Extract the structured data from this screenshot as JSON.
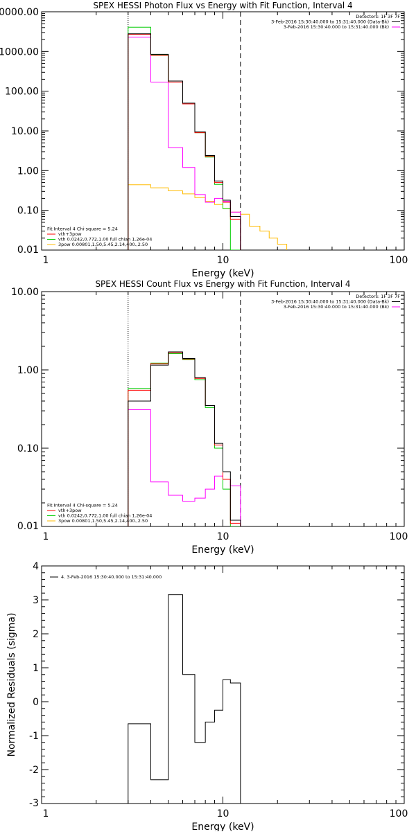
{
  "chart_data": [
    {
      "type": "line",
      "title": "SPEX HESSI Photon Flux vs Energy with Fit Function, Interval 4",
      "xlabel": "Energy (keV)",
      "ylabel": "",
      "xscale": "log",
      "yscale": "log",
      "xlim": [
        1,
        100
      ],
      "ylim": [
        0.01,
        10000
      ],
      "xticks": [
        {
          "v": 1,
          "label": "1"
        },
        {
          "v": 10,
          "label": "10"
        },
        {
          "v": 100,
          "label": "100"
        }
      ],
      "yticks": [
        {
          "v": 10000,
          "label": "10000.00"
        },
        {
          "v": 1000,
          "label": "1000.00"
        },
        {
          "v": 100,
          "label": "100.00"
        },
        {
          "v": 10,
          "label": "10.00"
        },
        {
          "v": 1,
          "label": "1.00"
        },
        {
          "v": 0.1,
          "label": "0.10"
        },
        {
          "v": 0.01,
          "label": "0.01"
        }
      ],
      "vlines": [
        {
          "x": 3.0,
          "style": "dotted"
        },
        {
          "x": 12.5,
          "style": "dashed"
        }
      ],
      "legend_tr": [
        {
          "text": "Detectors: 1F 3F 7F",
          "color": "#000000",
          "line": false
        },
        {
          "text": "3-Feb-2016 15:30:40.000 to 15:31:40.000 (Data-Bk)",
          "color": "#000000",
          "line": true
        },
        {
          "text": "3-Feb-2016 15:30:40.000 to 15:31:40.000 (Bk)",
          "color": "#ff00ff",
          "line": true
        }
      ],
      "legend_bl": [
        {
          "text": "Fit Interval 4   Chi-square = 5.24",
          "color": "#000000",
          "line": false
        },
        {
          "text": "vth+3pow",
          "color": "#ff0000",
          "line": true
        },
        {
          "text": "vth 0.0242,0.772,1.00   full chian 1.26e-04",
          "color": "#00cc00",
          "line": true
        },
        {
          "text": "3pow 0.00801,1.50,5.45,2.14,400.,2.50",
          "color": "#ffbb00",
          "line": true
        }
      ],
      "edges": [
        3.0,
        4.0,
        5.0,
        6.0,
        7.0,
        8.0,
        9.0,
        10.0,
        11.0,
        12.5
      ],
      "series": [
        {
          "name": "Data-Bk",
          "color": "#000000",
          "values": [
            2800,
            850,
            180,
            50,
            9.5,
            2.4,
            0.55,
            0.18,
            0.07
          ]
        },
        {
          "name": "vth+3pow",
          "color": "#ff0000",
          "values": [
            2700,
            800,
            170,
            48,
            9,
            2.3,
            0.5,
            0.16,
            0.06
          ]
        },
        {
          "name": "vth",
          "color": "#00cc00",
          "values": [
            4100,
            830,
            170,
            48,
            9,
            2.2,
            0.45,
            0.11,
            0.01
          ]
        },
        {
          "name": "Bk",
          "color": "#ff00ff",
          "values": [
            2300,
            170,
            3.8,
            1.2,
            0.25,
            0.16,
            0.2,
            0.17,
            0.09
          ]
        },
        {
          "name": "3pow",
          "color": "#ffbb00",
          "edges": [
            3.0,
            4.0,
            5.0,
            6.0,
            7.0,
            8.0,
            9.0,
            10.0,
            11.0,
            12.5,
            14.0,
            16.0,
            18.0,
            20.0,
            22.5
          ],
          "values": [
            0.44,
            0.37,
            0.31,
            0.26,
            0.21,
            0.17,
            0.14,
            0.11,
            0.09,
            0.08,
            0.04,
            0.03,
            0.02,
            0.014
          ]
        }
      ]
    },
    {
      "type": "line",
      "title": "SPEX HESSI Count Flux vs Energy with Fit Function, Interval 4",
      "xlabel": "Energy (keV)",
      "ylabel": "",
      "xscale": "log",
      "yscale": "log",
      "xlim": [
        1,
        100
      ],
      "ylim": [
        0.01,
        10
      ],
      "xticks": [
        {
          "v": 1,
          "label": "1"
        },
        {
          "v": 10,
          "label": "10"
        },
        {
          "v": 100,
          "label": "100"
        }
      ],
      "yticks": [
        {
          "v": 10,
          "label": "10.00"
        },
        {
          "v": 1,
          "label": "1.00"
        },
        {
          "v": 0.1,
          "label": "0.10"
        },
        {
          "v": 0.01,
          "label": "0.01"
        }
      ],
      "vlines": [
        {
          "x": 3.0,
          "style": "dotted"
        },
        {
          "x": 12.5,
          "style": "dashed"
        }
      ],
      "legend_tr": [
        {
          "text": "Detectors: 1F 3F 7F",
          "color": "#000000",
          "line": false
        },
        {
          "text": "3-Feb-2016 15:30:40.000 to 15:31:40.000 (Data-Bk)",
          "color": "#000000",
          "line": true
        },
        {
          "text": "3-Feb-2016 15:30:40.000 to 15:31:40.000 (Bk)",
          "color": "#ff00ff",
          "line": true
        }
      ],
      "legend_bl": [
        {
          "text": "Fit Interval 4   Chi-square = 5.24",
          "color": "#000000",
          "line": false
        },
        {
          "text": "vth+3pow",
          "color": "#ff0000",
          "line": true
        },
        {
          "text": "vth 0.0242,0.772,1.00   full chian 1.26e-04",
          "color": "#00cc00",
          "line": true
        },
        {
          "text": "3pow 0.00801,1.50,5.45,2.14,400.,2.50",
          "color": "#ffbb00",
          "line": true
        }
      ],
      "edges": [
        3.0,
        4.0,
        5.0,
        6.0,
        7.0,
        8.0,
        9.0,
        10.0,
        11.0,
        12.5
      ],
      "series": [
        {
          "name": "Data-Bk",
          "color": "#000000",
          "values": [
            0.4,
            1.15,
            1.7,
            1.4,
            0.8,
            0.35,
            0.115,
            0.05,
            0.012
          ]
        },
        {
          "name": "vth+3pow",
          "color": "#ff0000",
          "values": [
            0.55,
            1.2,
            1.65,
            1.38,
            0.78,
            0.35,
            0.11,
            0.04,
            0.011
          ]
        },
        {
          "name": "vth",
          "color": "#00cc00",
          "values": [
            0.58,
            1.22,
            1.62,
            1.35,
            0.75,
            0.33,
            0.1,
            0.03,
            0.01
          ]
        },
        {
          "name": "Bk",
          "color": "#ff00ff",
          "values": [
            0.31,
            0.037,
            0.025,
            0.021,
            0.023,
            0.03,
            0.044,
            0.04,
            0.033
          ]
        }
      ]
    },
    {
      "type": "line",
      "title": "",
      "xlabel": "Energy (keV)",
      "ylabel": "Normalized Residuals (sigma)",
      "xscale": "log",
      "yscale": "linear",
      "xlim": [
        1,
        100
      ],
      "ylim": [
        -3,
        4
      ],
      "xticks": [
        {
          "v": 1,
          "label": "1"
        },
        {
          "v": 10,
          "label": "10"
        },
        {
          "v": 100,
          "label": "100"
        }
      ],
      "yticks": [
        {
          "v": 4,
          "label": "4"
        },
        {
          "v": 3,
          "label": "3"
        },
        {
          "v": 2,
          "label": "2"
        },
        {
          "v": 1,
          "label": "1"
        },
        {
          "v": 0,
          "label": "0"
        },
        {
          "v": -1,
          "label": "-1"
        },
        {
          "v": -2,
          "label": "-2"
        },
        {
          "v": -3,
          "label": "-3"
        }
      ],
      "legend_tl": [
        {
          "text": "4.  3-Feb-2016 15:30:40.000 to 15:31:40.000",
          "color": "#000000",
          "line": true
        }
      ],
      "edges": [
        3.0,
        4.0,
        5.0,
        6.0,
        7.0,
        8.0,
        9.0,
        10.0,
        11.0,
        12.5
      ],
      "series": [
        {
          "name": "4",
          "color": "#000000",
          "values": [
            -0.65,
            -2.3,
            3.15,
            0.8,
            -1.2,
            -0.6,
            -0.25,
            0.65,
            0.55
          ]
        }
      ]
    }
  ]
}
